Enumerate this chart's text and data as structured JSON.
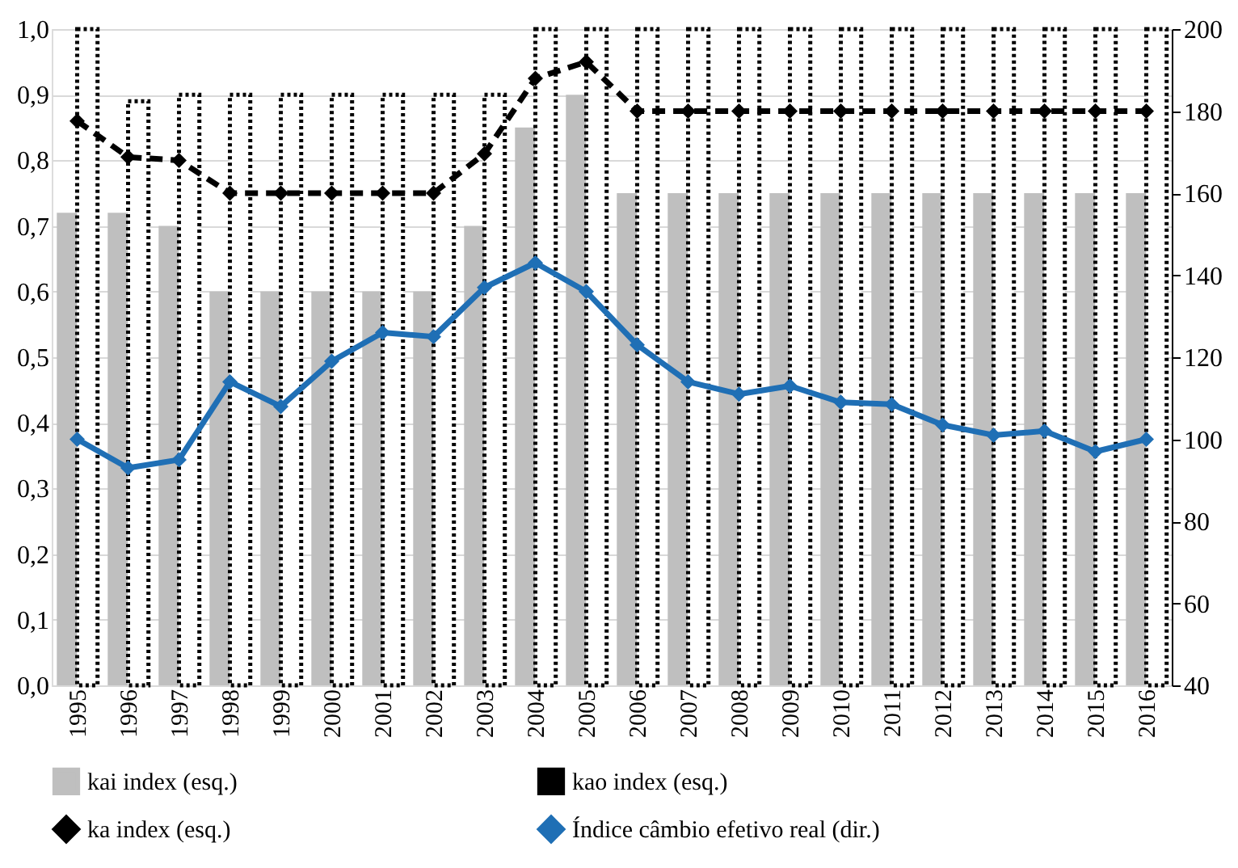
{
  "chart_data": {
    "type": "bar",
    "categories": [
      "1995",
      "1996",
      "1997",
      "1998",
      "1999",
      "2000",
      "2001",
      "2002",
      "2003",
      "2004",
      "2005",
      "2006",
      "2007",
      "2008",
      "2009",
      "2010",
      "2011",
      "2012",
      "2013",
      "2014",
      "2015",
      "2016"
    ],
    "series": [
      {
        "name": "kai index (esq.)",
        "color": "#bfbfbf",
        "values": [
          0.72,
          0.72,
          0.7,
          0.6,
          0.6,
          0.6,
          0.6,
          0.6,
          0.7,
          0.85,
          0.9,
          0.75,
          0.75,
          0.75,
          0.75,
          0.75,
          0.75,
          0.75,
          0.75,
          0.75,
          0.75,
          0.75
        ]
      },
      {
        "name": "kao index (esq.)",
        "color": "#000000",
        "line_style": "dotted",
        "values": [
          1.0,
          0.89,
          0.9,
          0.9,
          0.9,
          0.9,
          0.9,
          0.9,
          0.9,
          1.0,
          1.0,
          1.0,
          1.0,
          1.0,
          1.0,
          1.0,
          1.0,
          1.0,
          1.0,
          1.0,
          1.0,
          1.0
        ]
      },
      {
        "name": "ka index (esq.)",
        "type": "line",
        "color": "#000000",
        "line_style": "dashed",
        "marker": "diamond",
        "values": [
          0.86,
          0.805,
          0.8,
          0.75,
          0.75,
          0.75,
          0.75,
          0.75,
          0.81,
          0.925,
          0.95,
          0.875,
          0.875,
          0.875,
          0.875,
          0.875,
          0.875,
          0.875,
          0.875,
          0.875,
          0.875,
          0.875
        ]
      },
      {
        "name": "Índice câmbio efetivo real (dir.)",
        "type": "line",
        "axis": "y2",
        "color": "#1f6fb5",
        "line_style": "solid",
        "marker": "diamond",
        "values": [
          100,
          93,
          95,
          114,
          108,
          119,
          126,
          125,
          137,
          143,
          136,
          123,
          114,
          111,
          113,
          109,
          108.5,
          103.5,
          101,
          102,
          97,
          100
        ]
      }
    ],
    "ylim": [
      0,
      1
    ],
    "yticks": [
      {
        "value": 0,
        "label": "0,0"
      },
      {
        "value": 0.1,
        "label": "0,1"
      },
      {
        "value": 0.2,
        "label": "0,2"
      },
      {
        "value": 0.3,
        "label": "0,3"
      },
      {
        "value": 0.4,
        "label": "0,4"
      },
      {
        "value": 0.5,
        "label": "0,5"
      },
      {
        "value": 0.6,
        "label": "0,6"
      },
      {
        "value": 0.7,
        "label": "0,7"
      },
      {
        "value": 0.8,
        "label": "0,8"
      },
      {
        "value": 0.9,
        "label": "0,9"
      },
      {
        "value": 1,
        "label": "1,0"
      }
    ],
    "y2lim": [
      40,
      200
    ],
    "y2ticks": [
      40,
      60,
      80,
      100,
      120,
      140,
      160,
      180,
      200
    ],
    "grid": "y",
    "legend": "bottom"
  }
}
